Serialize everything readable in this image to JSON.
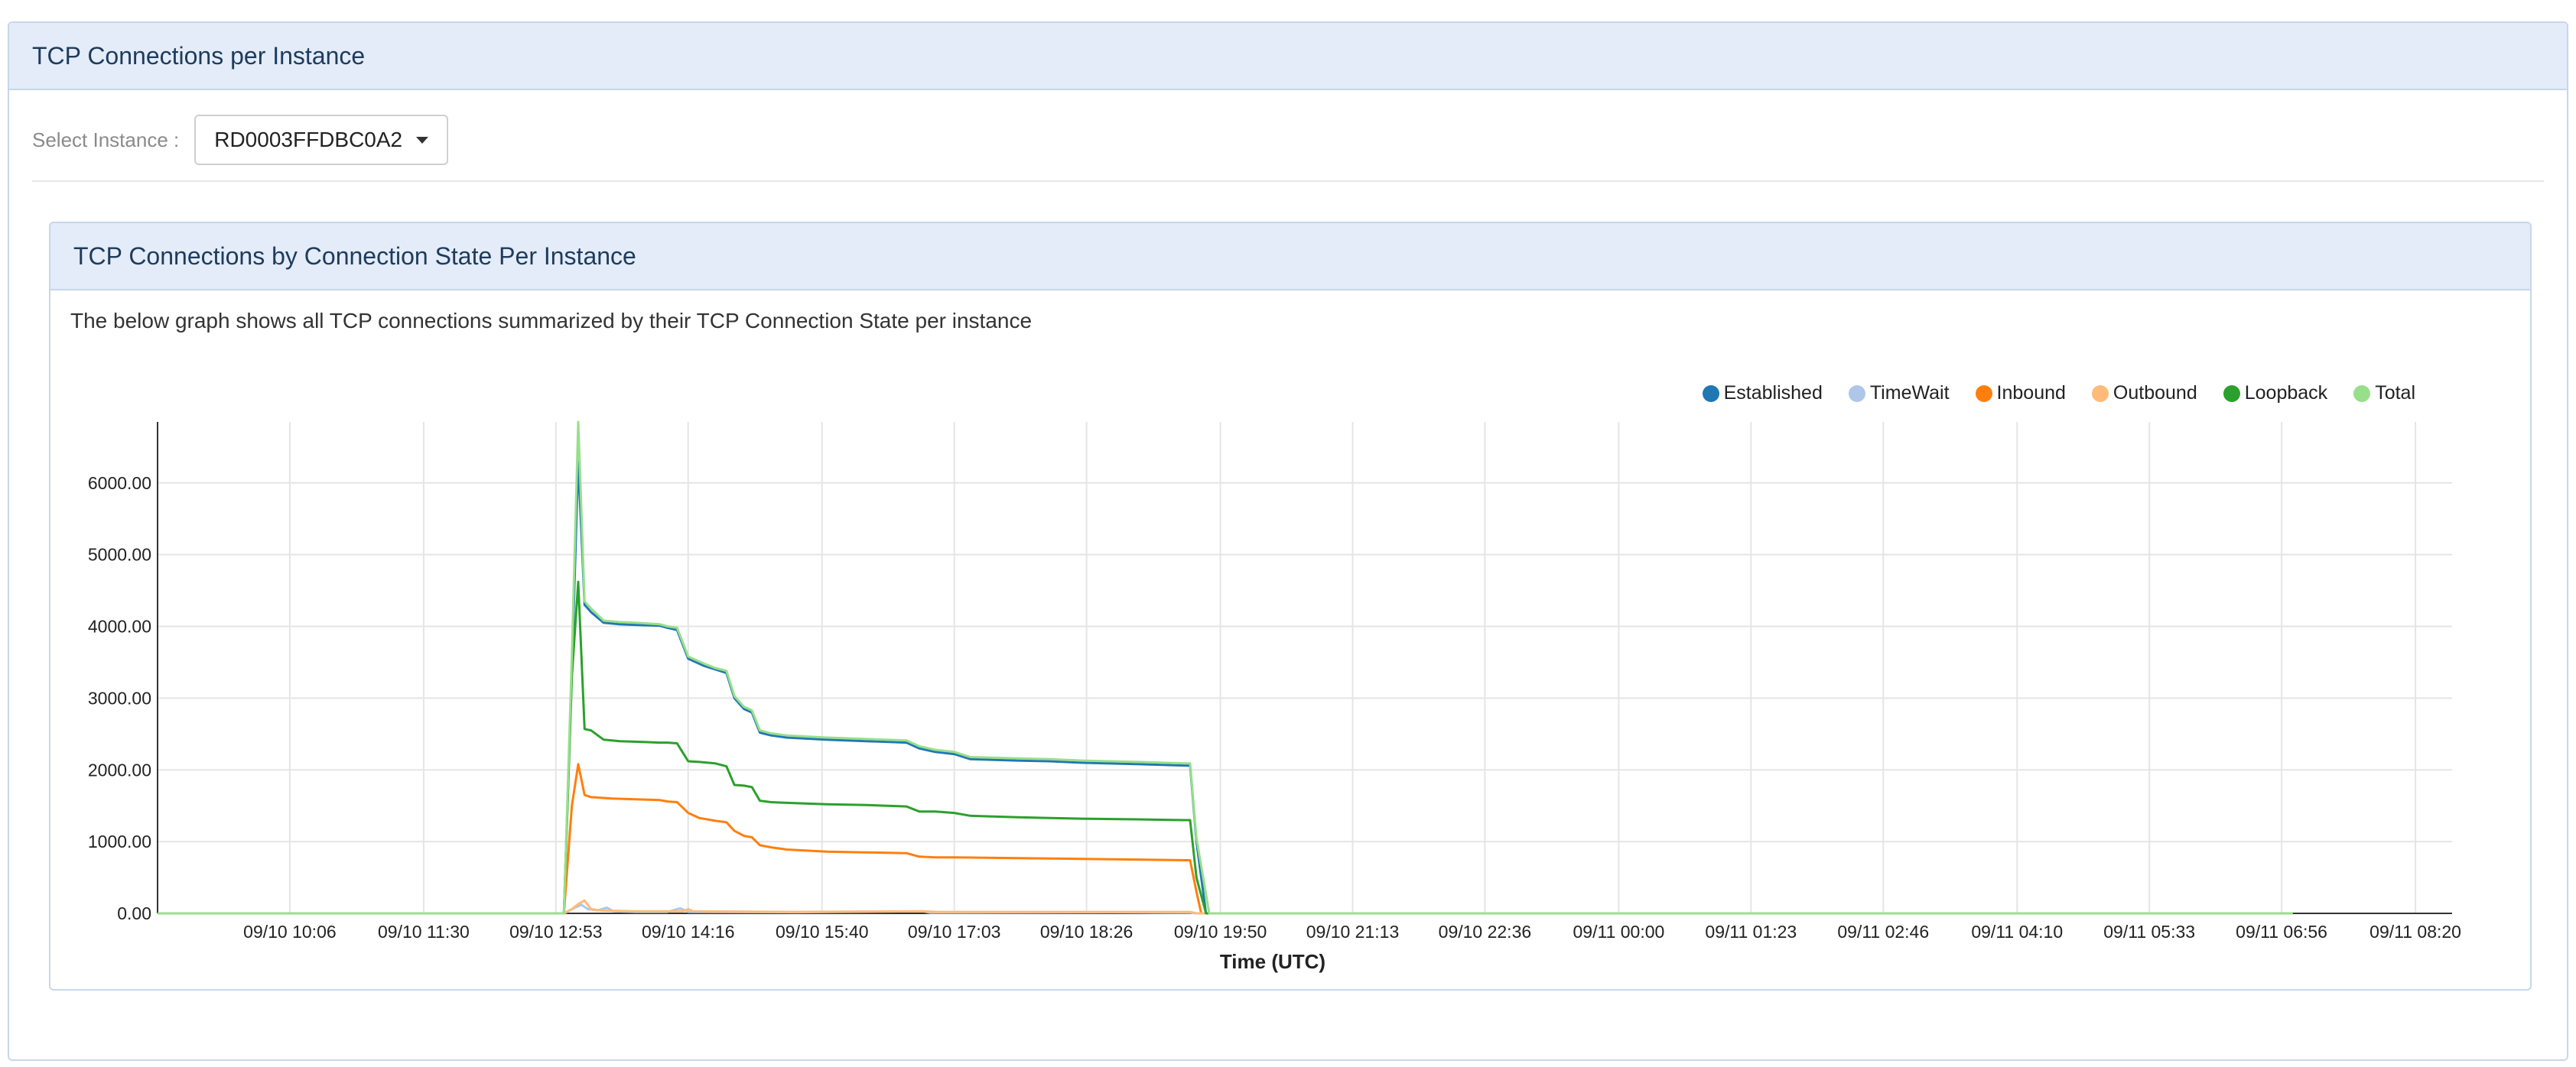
{
  "page": {
    "title": "TCP Connections per Instance"
  },
  "instance_selector": {
    "label": "Select Instance :",
    "selected": "RD0003FFDBC0A2"
  },
  "panel": {
    "title": "TCP Connections by Connection State Per Instance",
    "description": "The below graph shows all TCP connections summarized by their TCP Connection State per instance"
  },
  "chart_data": {
    "type": "line",
    "xlabel": "Time (UTC)",
    "ylabel": "",
    "ylim": [
      0,
      6850
    ],
    "yticks": [
      0,
      1000,
      2000,
      3000,
      4000,
      5000,
      6000
    ],
    "ytick_labels": [
      "0.00",
      "1000.00",
      "2000.00",
      "3000.00",
      "4000.00",
      "5000.00",
      "6000.00"
    ],
    "x_range_minutes": [
      0,
      1340
    ],
    "xticks": [
      {
        "t": 83,
        "label": "09/10 10:06"
      },
      {
        "t": 167,
        "label": "09/10 11:30"
      },
      {
        "t": 250,
        "label": "09/10 12:53"
      },
      {
        "t": 333,
        "label": "09/10 14:16"
      },
      {
        "t": 417,
        "label": "09/10 15:40"
      },
      {
        "t": 500,
        "label": "09/10 17:03"
      },
      {
        "t": 583,
        "label": "09/10 18:26"
      },
      {
        "t": 667,
        "label": "09/10 19:50"
      },
      {
        "t": 750,
        "label": "09/10 21:13"
      },
      {
        "t": 833,
        "label": "09/10 22:36"
      },
      {
        "t": 917,
        "label": "09/11 00:00"
      },
      {
        "t": 1000,
        "label": "09/11 01:23"
      },
      {
        "t": 1083,
        "label": "09/11 02:46"
      },
      {
        "t": 1167,
        "label": "09/11 04:10"
      },
      {
        "t": 1250,
        "label": "09/11 05:33"
      },
      {
        "t": 1333,
        "label": "09/11 06:56"
      },
      {
        "t": 1417,
        "label": "09/11 08:20"
      }
    ],
    "grid": true,
    "legend_position": "top-right",
    "series": [
      {
        "name": "Established",
        "color": "#1f77b4",
        "points": [
          [
            0,
            0
          ],
          [
            255,
            0
          ],
          [
            260,
            3400
          ],
          [
            264,
            6300
          ],
          [
            268,
            4300
          ],
          [
            272,
            4200
          ],
          [
            280,
            4050
          ],
          [
            290,
            4030
          ],
          [
            300,
            4020
          ],
          [
            315,
            4010
          ],
          [
            320,
            3980
          ],
          [
            326,
            3950
          ],
          [
            333,
            3550
          ],
          [
            338,
            3500
          ],
          [
            343,
            3450
          ],
          [
            350,
            3400
          ],
          [
            357,
            3350
          ],
          [
            362,
            3000
          ],
          [
            368,
            2850
          ],
          [
            373,
            2800
          ],
          [
            378,
            2520
          ],
          [
            385,
            2480
          ],
          [
            395,
            2450
          ],
          [
            420,
            2420
          ],
          [
            445,
            2400
          ],
          [
            470,
            2380
          ],
          [
            478,
            2300
          ],
          [
            488,
            2250
          ],
          [
            500,
            2220
          ],
          [
            510,
            2150
          ],
          [
            540,
            2130
          ],
          [
            560,
            2120
          ],
          [
            580,
            2100
          ],
          [
            615,
            2080
          ],
          [
            645,
            2060
          ],
          [
            648,
            2060
          ],
          [
            652,
            1000
          ],
          [
            658,
            0
          ],
          [
            1340,
            0
          ]
        ]
      },
      {
        "name": "TimeWait",
        "color": "#aec7e8",
        "points": [
          [
            0,
            0
          ],
          [
            255,
            0
          ],
          [
            262,
            80
          ],
          [
            266,
            120
          ],
          [
            270,
            60
          ],
          [
            276,
            40
          ],
          [
            282,
            80
          ],
          [
            286,
            30
          ],
          [
            300,
            20
          ],
          [
            320,
            20
          ],
          [
            328,
            70
          ],
          [
            333,
            20
          ],
          [
            400,
            15
          ],
          [
            480,
            30
          ],
          [
            485,
            10
          ],
          [
            600,
            15
          ],
          [
            648,
            10
          ],
          [
            652,
            0
          ],
          [
            1340,
            0
          ]
        ]
      },
      {
        "name": "Inbound",
        "color": "#ff7f0e",
        "points": [
          [
            0,
            0
          ],
          [
            255,
            0
          ],
          [
            260,
            1500
          ],
          [
            264,
            2080
          ],
          [
            268,
            1650
          ],
          [
            272,
            1620
          ],
          [
            285,
            1600
          ],
          [
            300,
            1590
          ],
          [
            315,
            1580
          ],
          [
            320,
            1560
          ],
          [
            326,
            1550
          ],
          [
            333,
            1400
          ],
          [
            340,
            1330
          ],
          [
            350,
            1290
          ],
          [
            357,
            1270
          ],
          [
            362,
            1150
          ],
          [
            368,
            1080
          ],
          [
            373,
            1060
          ],
          [
            378,
            950
          ],
          [
            385,
            920
          ],
          [
            395,
            890
          ],
          [
            420,
            860
          ],
          [
            445,
            850
          ],
          [
            470,
            840
          ],
          [
            478,
            790
          ],
          [
            488,
            780
          ],
          [
            500,
            780
          ],
          [
            540,
            770
          ],
          [
            580,
            760
          ],
          [
            615,
            750
          ],
          [
            645,
            740
          ],
          [
            648,
            740
          ],
          [
            652,
            300
          ],
          [
            655,
            0
          ],
          [
            1340,
            0
          ]
        ]
      },
      {
        "name": "Outbound",
        "color": "#ffbb78",
        "points": [
          [
            0,
            0
          ],
          [
            255,
            0
          ],
          [
            260,
            60
          ],
          [
            264,
            130
          ],
          [
            268,
            180
          ],
          [
            272,
            60
          ],
          [
            278,
            40
          ],
          [
            300,
            30
          ],
          [
            330,
            30
          ],
          [
            333,
            60
          ],
          [
            336,
            30
          ],
          [
            400,
            20
          ],
          [
            480,
            30
          ],
          [
            490,
            20
          ],
          [
            600,
            20
          ],
          [
            648,
            20
          ],
          [
            652,
            0
          ],
          [
            1340,
            0
          ]
        ]
      },
      {
        "name": "Loopback",
        "color": "#2ca02c",
        "points": [
          [
            0,
            0
          ],
          [
            255,
            0
          ],
          [
            260,
            3300
          ],
          [
            264,
            4620
          ],
          [
            268,
            2570
          ],
          [
            272,
            2550
          ],
          [
            280,
            2420
          ],
          [
            290,
            2400
          ],
          [
            305,
            2390
          ],
          [
            315,
            2380
          ],
          [
            320,
            2380
          ],
          [
            326,
            2370
          ],
          [
            333,
            2120
          ],
          [
            340,
            2110
          ],
          [
            350,
            2090
          ],
          [
            357,
            2050
          ],
          [
            362,
            1790
          ],
          [
            368,
            1780
          ],
          [
            373,
            1760
          ],
          [
            378,
            1570
          ],
          [
            385,
            1550
          ],
          [
            395,
            1540
          ],
          [
            420,
            1520
          ],
          [
            445,
            1510
          ],
          [
            470,
            1490
          ],
          [
            478,
            1420
          ],
          [
            488,
            1420
          ],
          [
            500,
            1400
          ],
          [
            510,
            1360
          ],
          [
            540,
            1340
          ],
          [
            560,
            1330
          ],
          [
            580,
            1320
          ],
          [
            615,
            1310
          ],
          [
            645,
            1300
          ],
          [
            648,
            1300
          ],
          [
            652,
            500
          ],
          [
            658,
            0
          ],
          [
            1340,
            0
          ]
        ]
      },
      {
        "name": "Total",
        "color": "#98df8a",
        "points": [
          [
            0,
            0
          ],
          [
            255,
            0
          ],
          [
            260,
            3600
          ],
          [
            264,
            6850
          ],
          [
            268,
            4350
          ],
          [
            272,
            4250
          ],
          [
            280,
            4080
          ],
          [
            290,
            4060
          ],
          [
            300,
            4050
          ],
          [
            315,
            4030
          ],
          [
            320,
            4000
          ],
          [
            326,
            3980
          ],
          [
            333,
            3580
          ],
          [
            338,
            3530
          ],
          [
            343,
            3480
          ],
          [
            350,
            3420
          ],
          [
            357,
            3380
          ],
          [
            362,
            3030
          ],
          [
            368,
            2880
          ],
          [
            373,
            2830
          ],
          [
            378,
            2550
          ],
          [
            385,
            2510
          ],
          [
            395,
            2480
          ],
          [
            420,
            2450
          ],
          [
            445,
            2430
          ],
          [
            470,
            2410
          ],
          [
            478,
            2330
          ],
          [
            488,
            2280
          ],
          [
            500,
            2250
          ],
          [
            510,
            2180
          ],
          [
            540,
            2160
          ],
          [
            560,
            2150
          ],
          [
            580,
            2130
          ],
          [
            615,
            2110
          ],
          [
            645,
            2090
          ],
          [
            648,
            2090
          ],
          [
            652,
            1050
          ],
          [
            660,
            0
          ],
          [
            1340,
            0
          ]
        ]
      }
    ]
  }
}
